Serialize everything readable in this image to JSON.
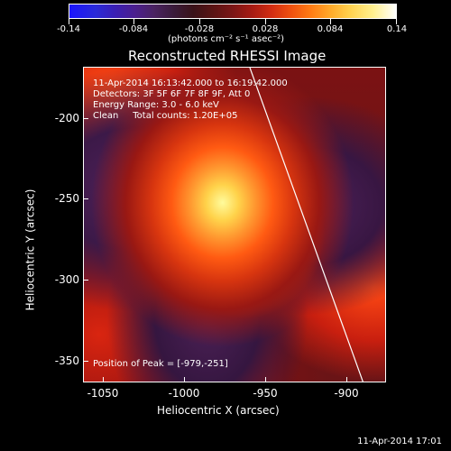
{
  "colorbar": {
    "tick_labels": [
      "-0.14",
      "-0.084",
      "-0.028",
      "0.028",
      "0.084",
      "0.14"
    ],
    "units": "(photons cm⁻² s⁻¹ asec⁻²)"
  },
  "plot": {
    "title": "Reconstructed RHESSI Image",
    "info_lines": [
      "11-Apr-2014 16:13:42.000 to 16:19:42.000",
      "Detectors: 3F 5F 6F 7F 8F 9F, Att 0",
      "Energy Range: 3.0 - 6.0 keV",
      "Clean     Total counts: 1.20E+05"
    ],
    "peak_text": "Position of Peak = [-979,-251]",
    "xlabel": "Heliocentric X (arcsec)",
    "ylabel": "Heliocentric Y (arcsec)",
    "xtick_labels": [
      "-1050",
      "-1000",
      "-950",
      "-900"
    ],
    "ytick_labels": [
      "-200",
      "-250",
      "-300",
      "-350"
    ]
  },
  "footer": {
    "timestamp": "11-Apr-2014 17:01"
  }
}
